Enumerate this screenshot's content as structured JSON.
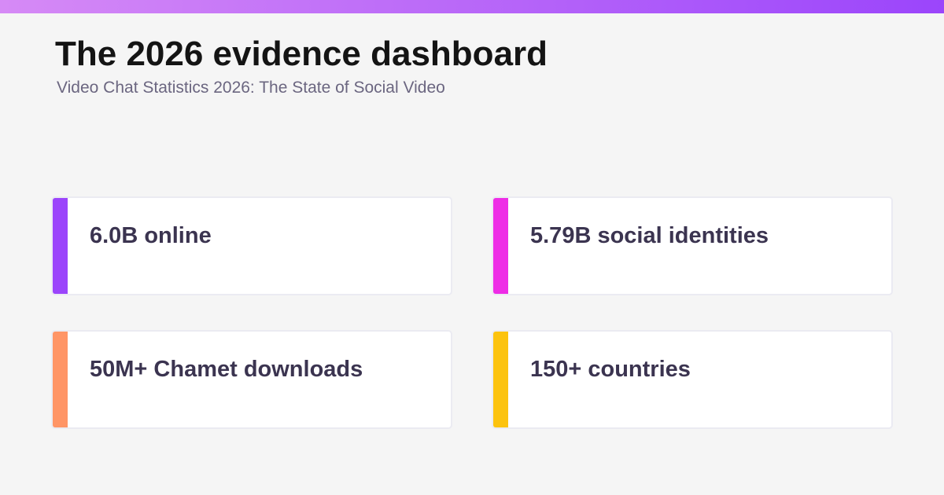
{
  "header": {
    "title": "The 2026 evidence dashboard",
    "subtitle": "Video Chat Statistics 2026: The State of Social Video"
  },
  "cards": [
    {
      "label": "6.0B online",
      "accent_color": "#9b45fb"
    },
    {
      "label": "5.79B social identities",
      "accent_color": "#ee2de6"
    },
    {
      "label": "50M+ Chamet downloads",
      "accent_color": "#ff9566"
    },
    {
      "label": "150+ countries",
      "accent_color": "#fcc30f"
    }
  ],
  "colors": {
    "background": "#f5f5f5",
    "top_bar_start": "#d68af6",
    "top_bar_end": "#9b45fb",
    "title": "#141414",
    "subtitle": "#6b6680",
    "card_text": "#3b3450"
  }
}
